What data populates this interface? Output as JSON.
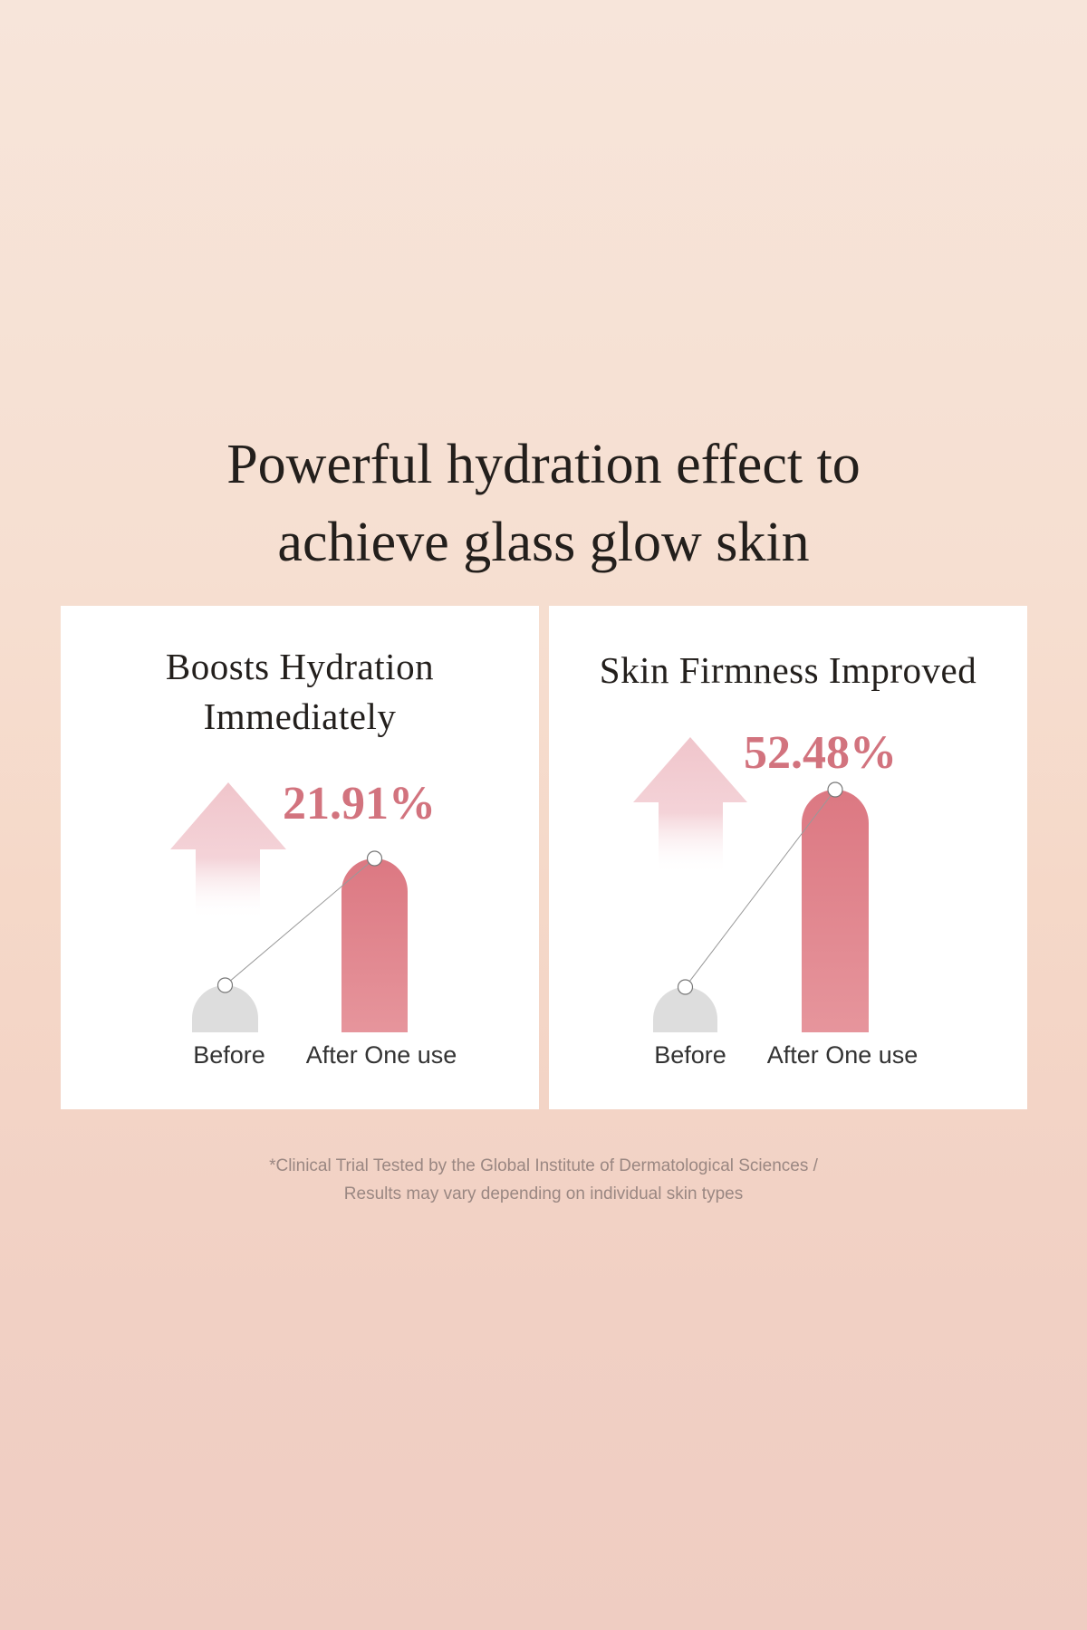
{
  "headline": {
    "line1": "Powerful hydration effect to",
    "line2": "achieve glass glow skin"
  },
  "panels": [
    {
      "title_line1": "Boosts Hydration",
      "title_line2": "Immediately",
      "percent": "21.91%",
      "before_label": "Before",
      "after_label": "After One use"
    },
    {
      "title_line1": "Skin Firmness Improved",
      "percent": "52.48%",
      "before_label": "Before",
      "after_label": "After One use"
    }
  ],
  "footnote": {
    "line1": "*Clinical Trial Tested by the Global Institute of Dermatological Sciences /",
    "line2": "Results may vary depending on individual skin types"
  },
  "colors": {
    "accent": "#d2737e",
    "bar_after": "#e0818b",
    "bar_before": "#dddddd",
    "arrow": "#f0c5cb"
  },
  "chart_data": [
    {
      "type": "bar",
      "title": "Boosts Hydration Immediately",
      "categories": [
        "Before",
        "After One use"
      ],
      "annotation": "21.91%"
    },
    {
      "type": "bar",
      "title": "Skin Firmness Improved",
      "categories": [
        "Before",
        "After One use"
      ],
      "annotation": "52.48%"
    }
  ]
}
